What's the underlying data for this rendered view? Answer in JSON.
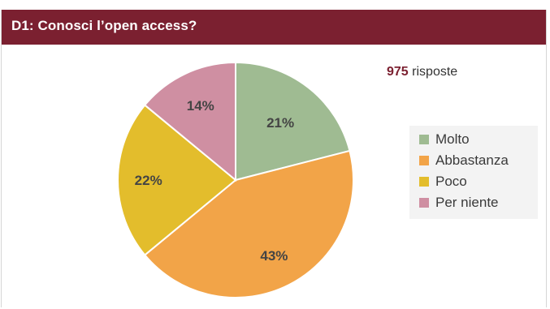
{
  "header": {
    "title": "D1: Conosci l’open access?"
  },
  "responses": {
    "count": "975",
    "label": "risposte"
  },
  "chart_data": {
    "type": "pie",
    "categories": [
      "Molto",
      "Abbastanza",
      "Poco",
      "Per niente"
    ],
    "values": [
      21,
      43,
      22,
      14
    ],
    "value_labels": [
      "21%",
      "43%",
      "22%",
      "14%"
    ],
    "colors": [
      "#9fbb92",
      "#f2a448",
      "#e3bd2c",
      "#cf8fa2"
    ],
    "start": "top, clockwise",
    "legend_position": "right"
  },
  "colors": {
    "header_bg": "#7b2030",
    "accent_text": "#7b2030"
  }
}
